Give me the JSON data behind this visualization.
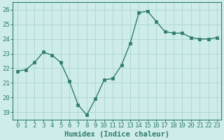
{
  "x": [
    0,
    1,
    2,
    3,
    4,
    5,
    6,
    7,
    8,
    9,
    10,
    11,
    12,
    13,
    14,
    15,
    16,
    17,
    18,
    19,
    20,
    21,
    22,
    23
  ],
  "y": [
    21.8,
    21.9,
    22.4,
    23.1,
    22.9,
    22.4,
    21.1,
    19.5,
    18.8,
    19.9,
    21.2,
    21.3,
    22.2,
    23.7,
    25.8,
    25.9,
    25.2,
    24.5,
    24.4,
    24.4,
    24.1,
    24.0,
    24.0,
    24.1
  ],
  "line_color": "#2e7d6e",
  "marker": "s",
  "markersize": 2.5,
  "bg_color": "#ceecea",
  "grid_color": "#b0d8d5",
  "xlabel": "Humidex (Indice chaleur)",
  "ylim": [
    18.5,
    26.5
  ],
  "xlim": [
    -0.5,
    23.5
  ],
  "yticks": [
    19,
    20,
    21,
    22,
    23,
    24,
    25,
    26
  ],
  "xtick_labels": [
    "0",
    "1",
    "2",
    "3",
    "4",
    "5",
    "6",
    "7",
    "8",
    "9",
    "10",
    "11",
    "12",
    "13",
    "14",
    "15",
    "16",
    "17",
    "18",
    "19",
    "20",
    "21",
    "22",
    "23"
  ],
  "axis_color": "#2e7d6e",
  "font_color": "#2e7d6e",
  "tick_fontsize": 6.5,
  "xlabel_fontsize": 7.5
}
